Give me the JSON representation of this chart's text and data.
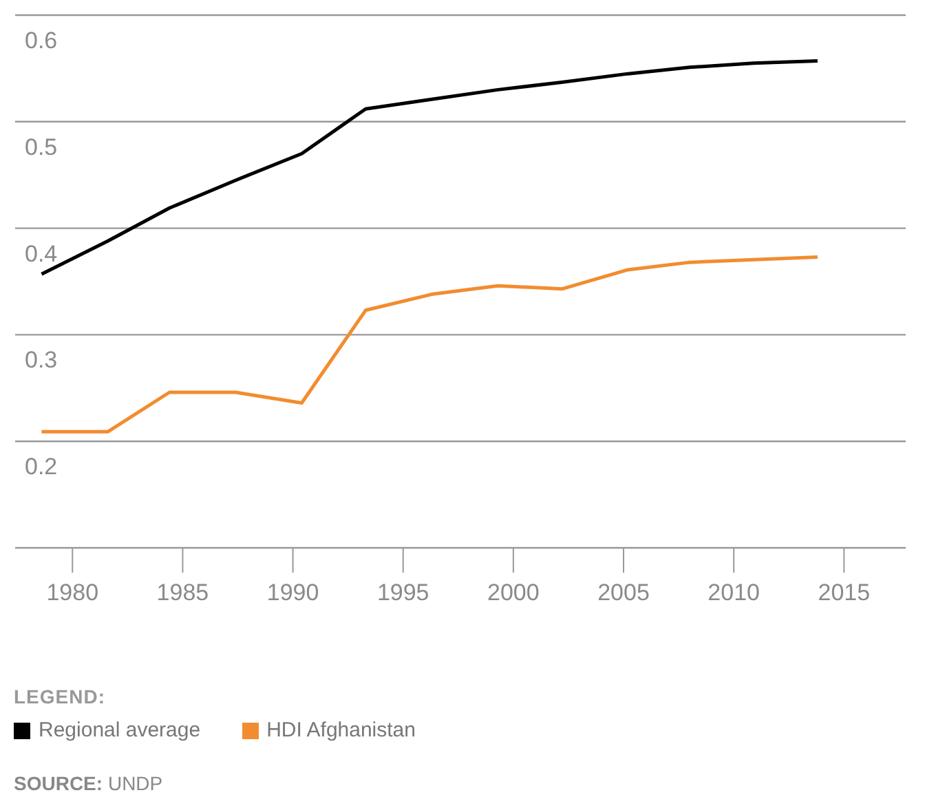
{
  "chart_data": {
    "type": "line",
    "legend_title": "LEGEND:",
    "annotations": [
      "SOURCE: UNDP"
    ],
    "xlim": [
      1977.4,
      2017.8
    ],
    "xticks": [
      1980,
      1985,
      1990,
      1995,
      2000,
      2005,
      2010,
      2015
    ],
    "ylim": [
      0.1,
      0.6
    ],
    "yticks": [
      {
        "value": 0.1,
        "label": null
      },
      0.2,
      0.3,
      0.4,
      0.5,
      0.6
    ],
    "grid": "y",
    "legend": "bottom",
    "marker": "none",
    "line_style": "solid",
    "series": [
      {
        "name": "Regional average",
        "color": "#000000",
        "x": [
          1978.6,
          1981.6,
          1984.4,
          1987.4,
          1990.4,
          1993.3,
          1996.3,
          1999.3,
          2002.2,
          2005.2,
          2008.0,
          2010.9,
          2013.8
        ],
        "values": [
          0.357,
          0.388,
          0.419,
          0.445,
          0.47,
          0.512,
          0.521,
          0.53,
          0.537,
          0.545,
          0.551,
          0.555,
          0.557
        ]
      },
      {
        "name": "HDI Afghanistan",
        "color": "#f28c30",
        "x": [
          1978.6,
          1981.6,
          1984.4,
          1987.4,
          1990.4,
          1993.3,
          1996.3,
          1999.3,
          2002.2,
          2005.2,
          2008.0,
          2013.8
        ],
        "values": [
          0.209,
          0.209,
          0.246,
          0.246,
          0.236,
          0.323,
          0.338,
          0.346,
          0.343,
          0.361,
          0.368,
          0.373
        ]
      }
    ]
  }
}
